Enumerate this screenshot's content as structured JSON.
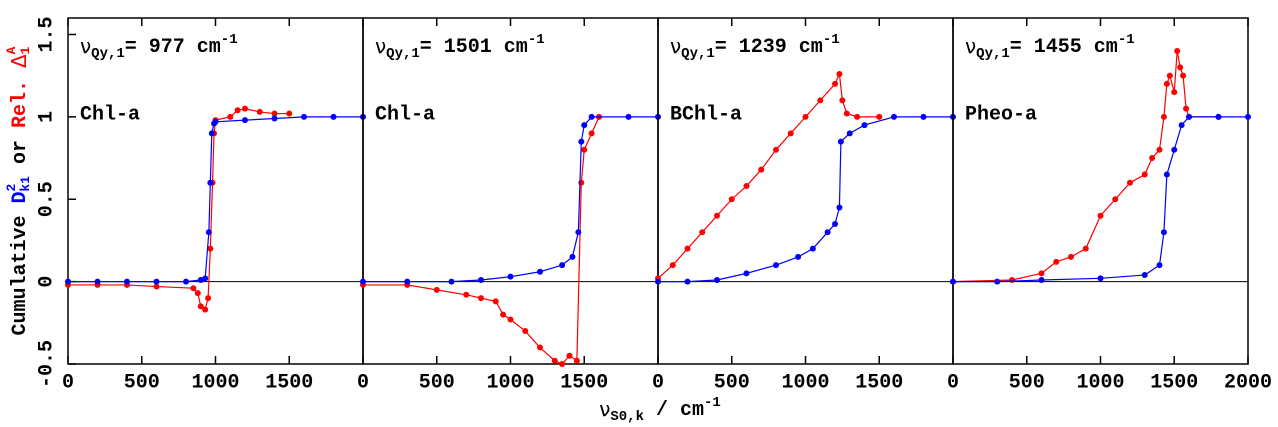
{
  "chart_data": [
    {
      "type": "line",
      "annotation": {
        "symbol": "ν",
        "subscript": "Qy,1",
        "text": "= 977 cm",
        "superscript": "-1"
      },
      "label": "Chl-a",
      "xlim": [
        0,
        2000
      ],
      "ylim": [
        -0.5,
        1.6
      ],
      "xticks": [
        0,
        500,
        1000,
        1500
      ],
      "yticks": [
        -0.5,
        0,
        0.5,
        1,
        1.5
      ],
      "hline": 0,
      "series": [
        {
          "color": "#ff0000",
          "x": [
            0,
            200,
            400,
            600,
            850,
            880,
            900,
            930,
            950,
            965,
            980,
            990,
            1000,
            1100,
            1150,
            1200,
            1300,
            1400,
            1500
          ],
          "values": [
            -0.02,
            -0.02,
            -0.02,
            -0.03,
            -0.04,
            -0.07,
            -0.15,
            -0.17,
            -0.1,
            0.2,
            0.6,
            0.9,
            0.98,
            1.0,
            1.04,
            1.05,
            1.03,
            1.02,
            1.02
          ]
        },
        {
          "color": "#0000ff",
          "x": [
            0,
            200,
            400,
            600,
            800,
            900,
            930,
            955,
            965,
            975,
            990,
            1000,
            1200,
            1400,
            1600,
            1800,
            2000
          ],
          "values": [
            0,
            0,
            0,
            0,
            0,
            0.01,
            0.02,
            0.3,
            0.6,
            0.9,
            0.96,
            0.97,
            0.98,
            0.99,
            1.0,
            1.0,
            1.0
          ]
        }
      ]
    },
    {
      "type": "line",
      "annotation": {
        "symbol": "ν",
        "subscript": "Qy,1",
        "text": "= 1501 cm",
        "superscript": "-1"
      },
      "label": "Chl-a",
      "xlim": [
        0,
        2000
      ],
      "ylim": [
        -0.5,
        1.6
      ],
      "xticks": [
        0,
        500,
        1000,
        1500
      ],
      "hline": 0,
      "series": [
        {
          "color": "#ff0000",
          "x": [
            0,
            300,
            500,
            700,
            800,
            900,
            950,
            1000,
            1100,
            1200,
            1300,
            1350,
            1400,
            1450,
            1480,
            1500,
            1550,
            1600
          ],
          "values": [
            -0.02,
            -0.02,
            -0.05,
            -0.08,
            -0.1,
            -0.12,
            -0.2,
            -0.23,
            -0.3,
            -0.4,
            -0.48,
            -0.5,
            -0.45,
            -0.48,
            0.6,
            0.8,
            0.9,
            1.0
          ]
        },
        {
          "color": "#0000ff",
          "x": [
            0,
            300,
            600,
            800,
            1000,
            1200,
            1350,
            1420,
            1460,
            1480,
            1500,
            1550,
            1800,
            2000
          ],
          "values": [
            0,
            0,
            0,
            0.01,
            0.03,
            0.06,
            0.1,
            0.15,
            0.3,
            0.85,
            0.95,
            1.0,
            1.0,
            1.0
          ]
        }
      ]
    },
    {
      "type": "line",
      "annotation": {
        "symbol": "ν",
        "subscript": "Qy,1",
        "text": "= 1239 cm",
        "superscript": "-1"
      },
      "label": "BChl-a",
      "xlim": [
        0,
        2000
      ],
      "ylim": [
        -0.5,
        1.6
      ],
      "xticks": [
        0,
        500,
        1000,
        1500
      ],
      "hline": 0,
      "series": [
        {
          "color": "#ff0000",
          "x": [
            0,
            100,
            200,
            300,
            400,
            500,
            600,
            700,
            800,
            900,
            1000,
            1100,
            1200,
            1230,
            1250,
            1280,
            1350,
            1500
          ],
          "values": [
            0.02,
            0.1,
            0.2,
            0.3,
            0.4,
            0.5,
            0.58,
            0.68,
            0.8,
            0.9,
            1.0,
            1.1,
            1.2,
            1.26,
            1.1,
            1.02,
            1.0,
            1.0
          ]
        },
        {
          "color": "#0000ff",
          "x": [
            0,
            200,
            400,
            600,
            800,
            950,
            1050,
            1150,
            1200,
            1230,
            1240,
            1300,
            1400,
            1600,
            1800,
            2000
          ],
          "values": [
            0,
            0,
            0.01,
            0.05,
            0.1,
            0.15,
            0.2,
            0.3,
            0.35,
            0.45,
            0.85,
            0.9,
            0.95,
            1.0,
            1.0,
            1.0
          ]
        }
      ]
    },
    {
      "type": "line",
      "annotation": {
        "symbol": "ν",
        "subscript": "Qy,1",
        "text": "= 1455 cm",
        "superscript": "-1"
      },
      "label": "Pheo-a",
      "xlim": [
        0,
        2000
      ],
      "ylim": [
        -0.5,
        1.6
      ],
      "xticks": [
        0,
        500,
        1000,
        1500,
        2000
      ],
      "hline": 0,
      "series": [
        {
          "color": "#ff0000",
          "x": [
            0,
            400,
            600,
            700,
            800,
            900,
            1000,
            1100,
            1200,
            1300,
            1350,
            1400,
            1430,
            1450,
            1470,
            1500,
            1520,
            1540,
            1560,
            1580,
            1600,
            1800
          ],
          "values": [
            0,
            0.01,
            0.05,
            0.12,
            0.15,
            0.2,
            0.4,
            0.5,
            0.6,
            0.65,
            0.75,
            0.8,
            1.0,
            1.2,
            1.25,
            1.15,
            1.4,
            1.3,
            1.25,
            1.05,
            1.0,
            1.0
          ]
        },
        {
          "color": "#0000ff",
          "x": [
            0,
            300,
            600,
            1000,
            1300,
            1400,
            1430,
            1450,
            1500,
            1550,
            1600,
            1800,
            2000
          ],
          "values": [
            0,
            0,
            0.01,
            0.02,
            0.04,
            0.1,
            0.3,
            0.65,
            0.8,
            0.95,
            1.0,
            1.0,
            1.0
          ]
        }
      ]
    }
  ],
  "shared": {
    "x_label": {
      "symbol": "ν",
      "subscript": "S0,k",
      "text": " / cm",
      "superscript": "-1"
    },
    "y_label": {
      "prefix": "Cumulative ",
      "d": "D",
      "d_sup": "2",
      "d_sub": "k1",
      "or": " or ",
      "rel": "Rel. ",
      "delta": "Δ",
      "delta_sup": "A",
      "delta_sub": "1"
    }
  }
}
